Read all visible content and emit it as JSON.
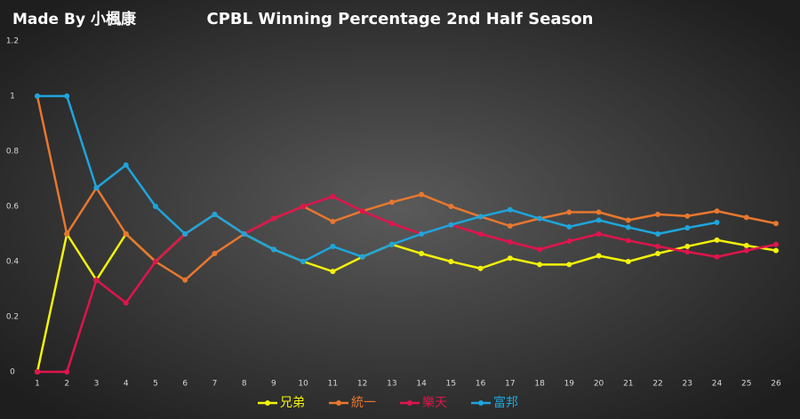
{
  "chart_data": {
    "type": "line",
    "title": "CPBL Winning Percentage 2nd Half Season",
    "annotation": "Made By 小楓康",
    "categories": [
      "1",
      "2",
      "3",
      "4",
      "5",
      "6",
      "7",
      "8",
      "9",
      "10",
      "11",
      "12",
      "13",
      "14",
      "15",
      "16",
      "17",
      "18",
      "19",
      "20",
      "21",
      "22",
      "23",
      "24",
      "25",
      "26"
    ],
    "series": [
      {
        "name": "兄弟",
        "color": "#f2f20a",
        "values": [
          0,
          0.5,
          0.333,
          0.5,
          0.4,
          0.5,
          0.571,
          0.5,
          0.444,
          0.4,
          0.364,
          0.417,
          0.462,
          0.429,
          0.4,
          0.375,
          0.412,
          0.389,
          0.389,
          0.421,
          0.4,
          0.429,
          0.455,
          0.478,
          0.458,
          0.44
        ]
      },
      {
        "name": "統一",
        "color": "#e8772e",
        "values": [
          1,
          0.5,
          0.667,
          0.5,
          0.4,
          0.333,
          0.429,
          0.5,
          0.556,
          0.6,
          0.545,
          0.583,
          0.615,
          0.643,
          0.6,
          0.563,
          0.529,
          0.556,
          0.579,
          0.579,
          0.55,
          0.571,
          0.565,
          0.583,
          0.56,
          0.538
        ]
      },
      {
        "name": "樂天",
        "color": "#e0144c",
        "values": [
          0,
          0,
          0.333,
          0.25,
          0.4,
          0.5,
          0.571,
          0.5,
          0.556,
          0.6,
          0.636,
          0.583,
          0.538,
          0.5,
          0.533,
          0.5,
          0.471,
          0.444,
          0.474,
          0.5,
          0.476,
          0.455,
          0.435,
          0.417,
          0.44,
          0.462
        ]
      },
      {
        "name": "富邦",
        "color": "#1ea5dc",
        "values": [
          1,
          1,
          0.667,
          0.75,
          0.6,
          0.5,
          0.571,
          0.5,
          0.444,
          0.4,
          0.455,
          0.417,
          0.462,
          0.5,
          0.533,
          0.563,
          0.588,
          0.556,
          0.526,
          0.55,
          0.524,
          0.5,
          0.522,
          0.542,
          null,
          null
        ]
      }
    ],
    "ylim": [
      0,
      1.2
    ],
    "yticks": [
      0,
      0.2,
      0.4,
      0.6,
      0.8,
      1,
      1.2
    ],
    "grid": false,
    "legend": "bottom"
  }
}
